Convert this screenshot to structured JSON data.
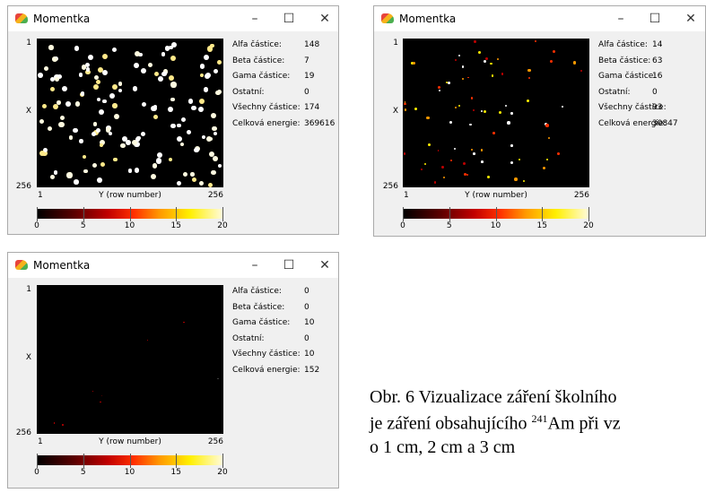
{
  "windows": [
    {
      "title": "Momentka",
      "stats": [
        {
          "label": "Alfa částice:",
          "value": 148
        },
        {
          "label": "Beta částice:",
          "value": 7
        },
        {
          "label": "Gama částice:",
          "value": 19
        },
        {
          "label": "Ostatní:",
          "value": 0
        },
        {
          "label": "Všechny částice:",
          "value": 174
        },
        {
          "label": "Celková energie:",
          "value": 369616
        }
      ],
      "y_axis": {
        "label": "X",
        "start": 1,
        "end": 256
      },
      "x_axis": {
        "label": "Y (row number)",
        "start": 1,
        "end": 256
      },
      "colorbar_ticks": [
        0,
        5,
        10,
        15,
        20
      ]
    },
    {
      "title": "Momentka",
      "stats": [
        {
          "label": "Alfa částice:",
          "value": 14
        },
        {
          "label": "Beta částice:",
          "value": 63
        },
        {
          "label": "Gama částice:",
          "value": 16
        },
        {
          "label": "Ostatní:",
          "value": 0
        },
        {
          "label": "Všechny částice:",
          "value": 93
        },
        {
          "label": "Celková energie:",
          "value": 30847
        }
      ],
      "y_axis": {
        "label": "X",
        "start": 1,
        "end": 256
      },
      "x_axis": {
        "label": "Y (row number)",
        "start": 1,
        "end": 256
      },
      "colorbar_ticks": [
        0,
        5,
        10,
        15,
        20
      ]
    },
    {
      "title": "Momentka",
      "stats": [
        {
          "label": "Alfa částice:",
          "value": 0
        },
        {
          "label": "Beta částice:",
          "value": 0
        },
        {
          "label": "Gama částice:",
          "value": 10
        },
        {
          "label": "Ostatní:",
          "value": 0
        },
        {
          "label": "Všechny částice:",
          "value": 10
        },
        {
          "label": "Celková energie:",
          "value": 152
        }
      ],
      "y_axis": {
        "label": "X",
        "start": 1,
        "end": 256
      },
      "x_axis": {
        "label": "Y (row number)",
        "start": 1,
        "end": 256
      },
      "colorbar_ticks": [
        0,
        5,
        10,
        15,
        20
      ]
    }
  ],
  "caption": {
    "line1": "Obr. 6 Vizualizace záření školního",
    "line2_before": "je záření obsahujícího",
    "superscript": 241,
    "line2_after": "Am při vz",
    "line3": "o 1 cm, 2 cm a 3 cm"
  }
}
